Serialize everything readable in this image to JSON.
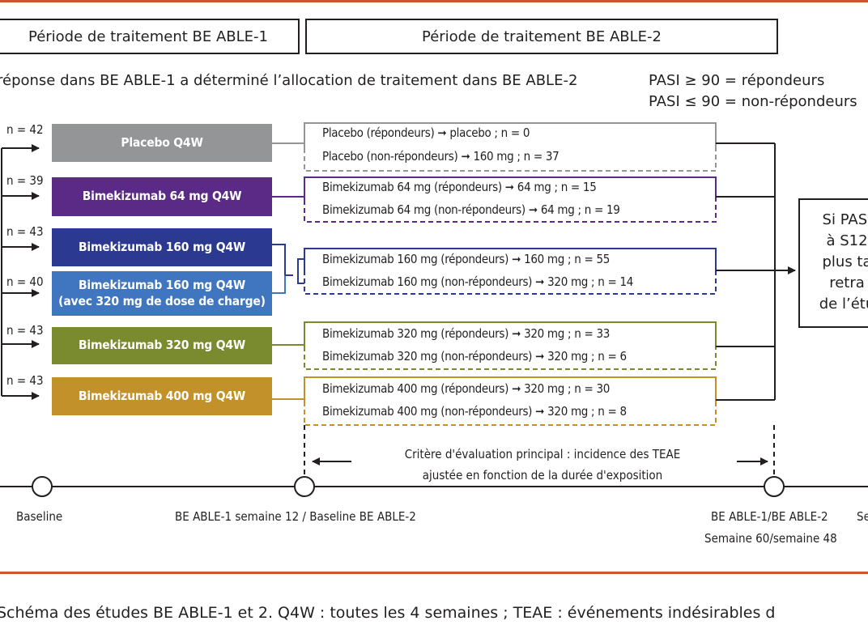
{
  "colors": {
    "rule": "#c8572b",
    "placebo": "#939597",
    "bkz64": "#5b2a86",
    "bkz160": "#2b3990",
    "bkz160ld": "#3f76bf",
    "bkz320": "#7a8a2e",
    "bkz400": "#c2912a"
  },
  "phases": {
    "able1": "Période de traitement BE ABLE-1",
    "able2": "Période de traitement BE ABLE-2"
  },
  "allocation_text": "réponse dans BE ABLE-1 a déterminé l’allocation de traitement dans BE ABLE-2",
  "pasi": {
    "responders": "PASI ≥ 90 = répondeurs",
    "nonresponders": "PASI ≤ 90 = non-répondeurs"
  },
  "arms": [
    {
      "n": "n = 42",
      "line1": "Placebo Q4W",
      "line2": ""
    },
    {
      "n": "n = 39",
      "line1": "Bimekizumab 64 mg Q4W",
      "line2": ""
    },
    {
      "n": "n = 43",
      "line1": "Bimekizumab 160 mg Q4W",
      "line2": ""
    },
    {
      "n": "n = 40",
      "line1": "Bimekizumab 160 mg Q4W",
      "line2": "(avec 320 mg de dose de charge)"
    },
    {
      "n": "n = 43",
      "line1": "Bimekizumab 320 mg Q4W",
      "line2": ""
    },
    {
      "n": "n = 43",
      "line1": "Bimekizumab 400 mg Q4W",
      "line2": ""
    }
  ],
  "subgroups": [
    {
      "resp": "Placebo (répondeurs) ➞ placebo ; n = 0",
      "nonresp": "Placebo (non-répondeurs) ➞ 160 mg ; n = 37"
    },
    {
      "resp": "Bimekizumab 64 mg (répondeurs) ➞ 64 mg ; n = 15",
      "nonresp": "Bimekizumab 64 mg (non-répondeurs) ➞ 64 mg ; n = 19"
    },
    {
      "resp": "Bimekizumab 160 mg (répondeurs) ➞ 160 mg ; n = 55",
      "nonresp": "Bimekizumab 160 mg (non-répondeurs) ➞ 320 mg ; n = 14"
    },
    {
      "resp": "Bimekizumab 320 mg (répondeurs) ➞ 320 mg ; n = 33",
      "nonresp": "Bimekizumab 320 mg (non-répondeurs) ➞ 320 mg ; n = 6"
    },
    {
      "resp": "Bimekizumab 400 mg (répondeurs) ➞ 320 mg ; n = 30",
      "nonresp": "Bimekizumab 400 mg (non-répondeurs) ➞ 320 mg ; n = 8"
    }
  ],
  "outcome_lines": [
    "Si PASI",
    "à S12",
    "plus ta",
    "retra",
    "de l’étu"
  ],
  "endpoint": {
    "line1": "Critère d'évaluation principal : incidence des TEAE",
    "line2": "ajustée en fonction de la durée d'exposition"
  },
  "timeline": {
    "baseline": "Baseline",
    "week12": "BE ABLE-1 semaine 12 / Baseline BE ABLE-2",
    "end_line1": "BE ABLE-1/BE ABLE-2",
    "end_line2": "Semaine 60/semaine 48",
    "right_cut": "Se"
  },
  "caption": "Schéma des études BE ABLE-1 et 2. Q4W : toutes les 4 semaines ; TEAE : événements indésirables d"
}
